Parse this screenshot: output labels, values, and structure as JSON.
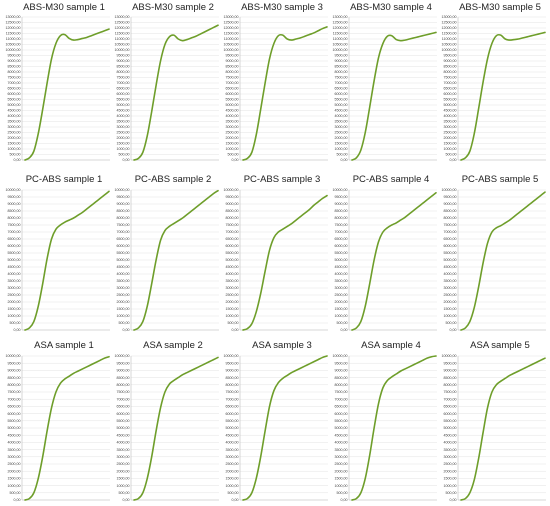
{
  "chart_data": [
    {
      "type": "line",
      "title": "ABS-M30 sample 1",
      "ylim": [
        0,
        13000
      ],
      "yticks": [
        "0,00",
        "500,00",
        "1000,00",
        "1500,00",
        "2000,00",
        "2500,00",
        "3000,00",
        "3500,00",
        "4000,00",
        "4500,00",
        "5000,00",
        "5500,00",
        "6000,00",
        "6500,00",
        "7000,00",
        "7500,00",
        "8000,00",
        "8500,00",
        "9000,00",
        "9500,00",
        "10000,00",
        "10500,00",
        "11000,00",
        "11500,00",
        "12000,00",
        "12500,00",
        "13000,00"
      ],
      "grid": true,
      "series": [
        {
          "values": [
            0,
            200,
            800,
            2400,
            4600,
            7000,
            9200,
            10600,
            11300,
            11400,
            11050,
            10900,
            10950,
            11050,
            11150,
            11300,
            11450,
            11600,
            11750,
            11900
          ]
        }
      ]
    },
    {
      "type": "line",
      "title": "ABS-M30 sample 2",
      "ylim": [
        0,
        13000
      ],
      "yticks": [
        "0,00",
        "500,00",
        "1000,00",
        "1500,00",
        "2000,00",
        "2500,00",
        "3000,00",
        "3500,00",
        "4000,00",
        "4500,00",
        "5000,00",
        "5500,00",
        "6000,00",
        "6500,00",
        "7000,00",
        "7500,00",
        "8000,00",
        "8500,00",
        "9000,00",
        "9500,00",
        "10000,00",
        "10500,00",
        "11000,00",
        "11500,00",
        "12000,00",
        "12500,00",
        "13000,00"
      ],
      "grid": true,
      "series": [
        {
          "values": [
            0,
            150,
            700,
            2200,
            4400,
            6800,
            9000,
            10500,
            11200,
            11350,
            11000,
            10850,
            10950,
            11100,
            11250,
            11450,
            11650,
            11850,
            12050,
            12250
          ]
        }
      ]
    },
    {
      "type": "line",
      "title": "ABS-M30 sample 3",
      "ylim": [
        0,
        13000
      ],
      "yticks": [
        "0,00",
        "500,00",
        "1000,00",
        "1500,00",
        "2000,00",
        "2500,00",
        "3000,00",
        "3500,00",
        "4000,00",
        "4500,00",
        "5000,00",
        "5500,00",
        "6000,00",
        "6500,00",
        "7000,00",
        "7500,00",
        "8000,00",
        "8500,00",
        "9000,00",
        "9500,00",
        "10000,00",
        "10500,00",
        "11000,00",
        "11500,00",
        "12000,00",
        "12500,00",
        "13000,00"
      ],
      "grid": true,
      "series": [
        {
          "values": [
            0,
            150,
            700,
            2300,
            4600,
            7000,
            9200,
            10600,
            11300,
            11350,
            11000,
            10900,
            11000,
            11100,
            11250,
            11400,
            11550,
            11750,
            11950,
            12100
          ]
        }
      ]
    },
    {
      "type": "line",
      "title": "ABS-M30 sample 4",
      "ylim": [
        0,
        13000
      ],
      "yticks": [
        "0,00",
        "500,00",
        "1000,00",
        "1500,00",
        "2000,00",
        "2500,00",
        "3000,00",
        "3500,00",
        "4000,00",
        "4500,00",
        "5000,00",
        "5500,00",
        "6000,00",
        "6500,00",
        "7000,00",
        "7500,00",
        "8000,00",
        "8500,00",
        "9000,00",
        "9500,00",
        "10000,00",
        "10500,00",
        "11000,00",
        "11500,00",
        "12000,00",
        "12500,00",
        "13000,00"
      ],
      "grid": true,
      "series": [
        {
          "values": [
            0,
            200,
            900,
            2500,
            4800,
            7200,
            9300,
            10600,
            11250,
            11300,
            10950,
            10850,
            10900,
            11000,
            11100,
            11200,
            11300,
            11400,
            11500,
            11600
          ]
        }
      ]
    },
    {
      "type": "line",
      "title": "ABS-M30 sample 5",
      "ylim": [
        0,
        13000
      ],
      "yticks": [
        "0,00",
        "500,00",
        "1000,00",
        "1500,00",
        "2000,00",
        "2500,00",
        "3000,00",
        "3500,00",
        "4000,00",
        "4500,00",
        "5000,00",
        "5500,00",
        "6000,00",
        "6500,00",
        "7000,00",
        "7500,00",
        "8000,00",
        "8500,00",
        "9000,00",
        "9500,00",
        "10000,00",
        "10500,00",
        "11000,00",
        "11500,00",
        "12000,00",
        "12500,00",
        "13000,00"
      ],
      "grid": true,
      "series": [
        {
          "values": [
            0,
            200,
            800,
            2400,
            4700,
            7100,
            9200,
            10600,
            11300,
            11350,
            11000,
            10900,
            10950,
            11000,
            11100,
            11200,
            11300,
            11400,
            11500,
            11600
          ]
        }
      ]
    },
    {
      "type": "line",
      "title": "PC-ABS sample 1",
      "ylim": [
        0,
        10000
      ],
      "yticks": [
        "0,00",
        "500,00",
        "1000,00",
        "1500,00",
        "2000,00",
        "2500,00",
        "3000,00",
        "3500,00",
        "4000,00",
        "4500,00",
        "5000,00",
        "5500,00",
        "6000,00",
        "6500,00",
        "7000,00",
        "7500,00",
        "8000,00",
        "8500,00",
        "9000,00",
        "9500,00",
        "10000,00"
      ],
      "grid": true,
      "series": [
        {
          "values": [
            0,
            150,
            600,
            1700,
            3300,
            5100,
            6500,
            7200,
            7500,
            7700,
            7850,
            8000,
            8200,
            8400,
            8650,
            8900,
            9150,
            9400,
            9650,
            9900
          ]
        }
      ]
    },
    {
      "type": "line",
      "title": "PC-ABS sample 2",
      "ylim": [
        0,
        10000
      ],
      "yticks": [
        "0,00",
        "500,00",
        "1000,00",
        "1500,00",
        "2000,00",
        "2500,00",
        "3000,00",
        "3500,00",
        "4000,00",
        "4500,00",
        "5000,00",
        "5500,00",
        "6000,00",
        "6500,00",
        "7000,00",
        "7500,00",
        "8000,00",
        "8500,00",
        "9000,00",
        "9500,00",
        "10000,00"
      ],
      "grid": true,
      "series": [
        {
          "values": [
            0,
            150,
            600,
            1700,
            3300,
            5000,
            6400,
            7100,
            7400,
            7600,
            7800,
            8000,
            8250,
            8500,
            8750,
            9000,
            9250,
            9500,
            9750,
            9950
          ]
        }
      ]
    },
    {
      "type": "line",
      "title": "PC-ABS sample 3",
      "ylim": [
        0,
        10000
      ],
      "yticks": [
        "0,00",
        "500,00",
        "1000,00",
        "1500,00",
        "2000,00",
        "2500,00",
        "3000,00",
        "3500,00",
        "4000,00",
        "4500,00",
        "5000,00",
        "5500,00",
        "6000,00",
        "6500,00",
        "7000,00",
        "7500,00",
        "8000,00",
        "8500,00",
        "9000,00",
        "9500,00",
        "10000,00"
      ],
      "grid": true,
      "series": [
        {
          "values": [
            0,
            100,
            450,
            1300,
            2600,
            4200,
            5700,
            6600,
            7000,
            7200,
            7400,
            7600,
            7850,
            8100,
            8350,
            8600,
            8900,
            9150,
            9400,
            9600
          ]
        }
      ]
    },
    {
      "type": "line",
      "title": "PC-ABS sample 4",
      "ylim": [
        0,
        10000
      ],
      "yticks": [
        "0,00",
        "500,00",
        "1000,00",
        "1500,00",
        "2000,00",
        "2500,00",
        "3000,00",
        "3500,00",
        "4000,00",
        "4500,00",
        "5000,00",
        "5500,00",
        "6000,00",
        "6500,00",
        "7000,00",
        "7500,00",
        "8000,00",
        "8500,00",
        "9000,00",
        "9500,00",
        "10000,00"
      ],
      "grid": true,
      "series": [
        {
          "values": [
            0,
            150,
            600,
            1700,
            3300,
            5000,
            6300,
            7000,
            7300,
            7500,
            7650,
            7850,
            8050,
            8300,
            8550,
            8800,
            9050,
            9300,
            9550,
            9800
          ]
        }
      ]
    },
    {
      "type": "line",
      "title": "PC-ABS sample 5",
      "ylim": [
        0,
        10000
      ],
      "yticks": [
        "0,00",
        "500,00",
        "1000,00",
        "1500,00",
        "2000,00",
        "2500,00",
        "3000,00",
        "3500,00",
        "4000,00",
        "4500,00",
        "5000,00",
        "5500,00",
        "6000,00",
        "6500,00",
        "7000,00",
        "7500,00",
        "8000,00",
        "8500,00",
        "9000,00",
        "9500,00",
        "10000,00"
      ],
      "grid": true,
      "series": [
        {
          "values": [
            0,
            150,
            600,
            1600,
            3100,
            4800,
            6200,
            7000,
            7300,
            7450,
            7650,
            7850,
            8100,
            8350,
            8600,
            8850,
            9100,
            9350,
            9600,
            9850
          ]
        }
      ]
    },
    {
      "type": "line",
      "title": "ASA sample 1",
      "ylim": [
        0,
        10000
      ],
      "yticks": [
        "0,00",
        "500,00",
        "1000,00",
        "1500,00",
        "2000,00",
        "2500,00",
        "3000,00",
        "3500,00",
        "4000,00",
        "4500,00",
        "5000,00",
        "5500,00",
        "6000,00",
        "6500,00",
        "7000,00",
        "7500,00",
        "8000,00",
        "8500,00",
        "9000,00",
        "9500,00",
        "10000,00"
      ],
      "grid": true,
      "series": [
        {
          "values": [
            0,
            100,
            500,
            1500,
            3000,
            4800,
            6400,
            7500,
            8100,
            8400,
            8600,
            8800,
            8950,
            9100,
            9250,
            9400,
            9550,
            9700,
            9850,
            9950
          ]
        }
      ]
    },
    {
      "type": "line",
      "title": "ASA sample 2",
      "ylim": [
        0,
        10000
      ],
      "yticks": [
        "0,00",
        "500,00",
        "1000,00",
        "1500,00",
        "2000,00",
        "2500,00",
        "3000,00",
        "3500,00",
        "4000,00",
        "4500,00",
        "5000,00",
        "5500,00",
        "6000,00",
        "6500,00",
        "7000,00",
        "7500,00",
        "8000,00",
        "8500,00",
        "9000,00",
        "9500,00",
        "10000,00"
      ],
      "grid": true,
      "series": [
        {
          "values": [
            0,
            100,
            500,
            1500,
            3000,
            4800,
            6400,
            7500,
            8050,
            8300,
            8500,
            8700,
            8850,
            9000,
            9150,
            9300,
            9450,
            9600,
            9750,
            9900
          ]
        }
      ]
    },
    {
      "type": "line",
      "title": "ASA sample 3",
      "ylim": [
        0,
        10000
      ],
      "yticks": [
        "0,00",
        "500,00",
        "1000,00",
        "1500,00",
        "2000,00",
        "2500,00",
        "3000,00",
        "3500,00",
        "4000,00",
        "4500,00",
        "5000,00",
        "5500,00",
        "6000,00",
        "6500,00",
        "7000,00",
        "7500,00",
        "8000,00",
        "8500,00",
        "9000,00",
        "9500,00",
        "10000,00"
      ],
      "grid": true,
      "series": [
        {
          "values": [
            0,
            100,
            500,
            1500,
            3000,
            4800,
            6500,
            7600,
            8150,
            8450,
            8650,
            8850,
            9000,
            9150,
            9300,
            9450,
            9600,
            9750,
            9900,
            10000
          ]
        }
      ]
    },
    {
      "type": "line",
      "title": "ASA sample 4",
      "ylim": [
        0,
        10000
      ],
      "yticks": [
        "0,00",
        "500,00",
        "1000,00",
        "1500,00",
        "2000,00",
        "2500,00",
        "3000,00",
        "3500,00",
        "4000,00",
        "4500,00",
        "5000,00",
        "5500,00",
        "6000,00",
        "6500,00",
        "7000,00",
        "7500,00",
        "8000,00",
        "8500,00",
        "9000,00",
        "9500,00",
        "10000,00"
      ],
      "grid": true,
      "series": [
        {
          "values": [
            0,
            100,
            500,
            1500,
            3100,
            5000,
            6700,
            7800,
            8300,
            8550,
            8750,
            8950,
            9100,
            9250,
            9400,
            9550,
            9700,
            9850,
            9950,
            10000
          ]
        }
      ]
    },
    {
      "type": "line",
      "title": "ASA sample 5",
      "ylim": [
        0,
        10000
      ],
      "yticks": [
        "0,00",
        "500,00",
        "1000,00",
        "1500,00",
        "2000,00",
        "2500,00",
        "3000,00",
        "3500,00",
        "4000,00",
        "4500,00",
        "5000,00",
        "5500,00",
        "6000,00",
        "6500,00",
        "7000,00",
        "7500,00",
        "8000,00",
        "8500,00",
        "9000,00",
        "9500,00",
        "10000,00"
      ],
      "grid": true,
      "series": [
        {
          "values": [
            0,
            100,
            500,
            1400,
            2900,
            4700,
            6400,
            7500,
            8000,
            8250,
            8450,
            8650,
            8800,
            8950,
            9100,
            9250,
            9400,
            9550,
            9700,
            9850
          ]
        }
      ]
    }
  ],
  "colors": {
    "line": "#6e9e2a",
    "grid": "#e3e3e3",
    "axis": "#bdbdbd"
  }
}
